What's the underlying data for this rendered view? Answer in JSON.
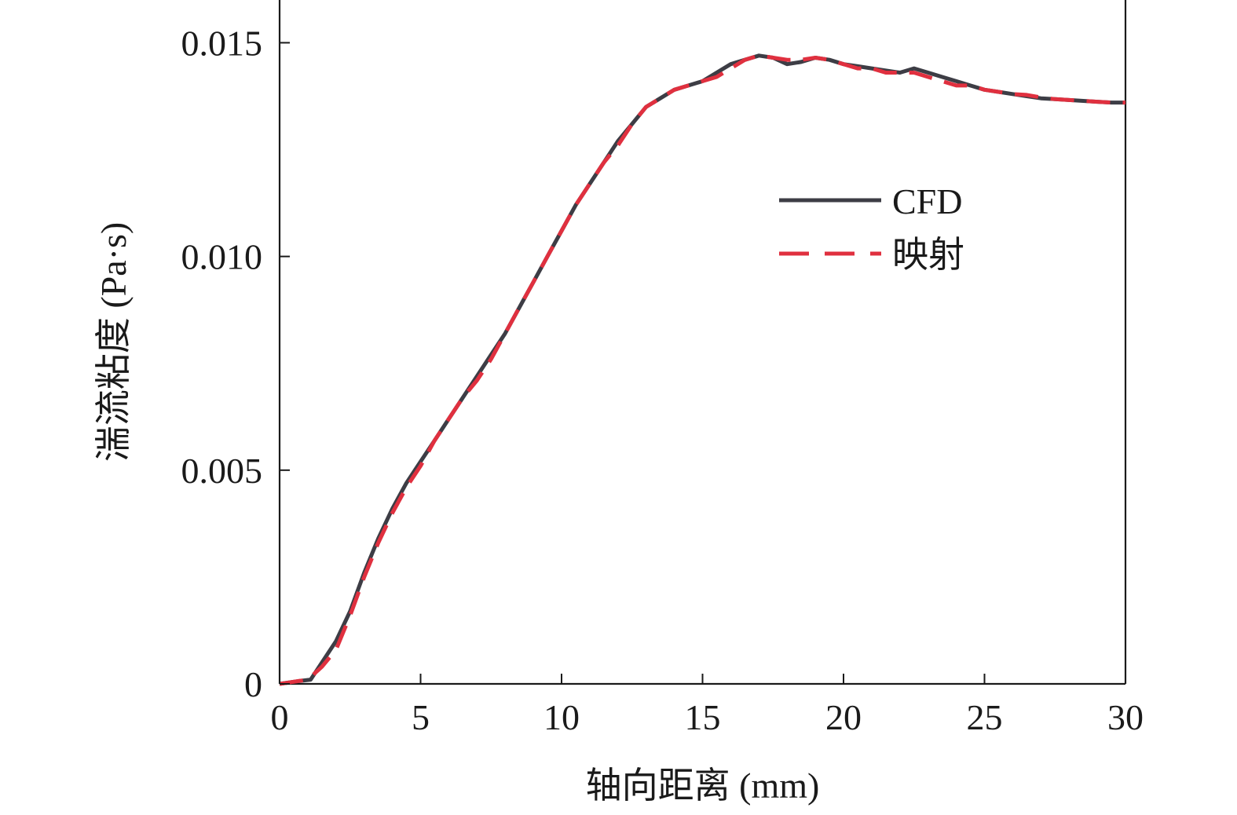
{
  "chart_data": {
    "type": "line",
    "title": "",
    "xlabel": "轴向距离 (mm)",
    "ylabel": "湍流粘度 (Pa·s)",
    "xlim": [
      0,
      30
    ],
    "ylim": [
      0,
      0.016
    ],
    "xticks": [
      0,
      5,
      10,
      15,
      20,
      25,
      30
    ],
    "xtick_labels": [
      "0",
      "5",
      "10",
      "15",
      "20",
      "25",
      "30"
    ],
    "yticks": [
      0,
      0.005,
      0.01,
      0.015
    ],
    "ytick_labels": [
      "0",
      "0.005",
      "0.010",
      "0.015"
    ],
    "grid": false,
    "legend_position": "upper-right",
    "series": [
      {
        "name": "CFD",
        "style": "solid",
        "color": "#3d3d45",
        "x": [
          0,
          0.5,
          1.1,
          1.5,
          2.0,
          2.5,
          3.0,
          3.5,
          4.0,
          4.5,
          5.0,
          5.5,
          6.0,
          6.5,
          7.0,
          7.5,
          8.0,
          8.5,
          9.0,
          9.5,
          10.0,
          10.5,
          11.0,
          11.5,
          12.0,
          12.5,
          13.0,
          13.5,
          14.0,
          14.5,
          15.0,
          15.5,
          16.0,
          16.5,
          17.0,
          17.5,
          18.0,
          18.5,
          19.0,
          19.5,
          20.0,
          20.5,
          21.0,
          21.5,
          22.0,
          22.5,
          23.0,
          23.5,
          24.0,
          24.5,
          25.0,
          25.5,
          26.0,
          26.5,
          27.0,
          27.5,
          28.0,
          28.5,
          29.0,
          29.5,
          30.0
        ],
        "y": [
          0,
          5e-05,
          0.0001,
          0.0005,
          0.001,
          0.0017,
          0.0026,
          0.0034,
          0.0041,
          0.0047,
          0.0052,
          0.0057,
          0.0062,
          0.0067,
          0.0072,
          0.0077,
          0.0082,
          0.0088,
          0.0094,
          0.01,
          0.0106,
          0.0112,
          0.0117,
          0.0122,
          0.0127,
          0.0131,
          0.0135,
          0.0137,
          0.0139,
          0.014,
          0.0141,
          0.0143,
          0.0145,
          0.0146,
          0.0147,
          0.01465,
          0.0145,
          0.01455,
          0.01465,
          0.0146,
          0.0145,
          0.01445,
          0.0144,
          0.01435,
          0.0143,
          0.0144,
          0.0143,
          0.0142,
          0.0141,
          0.014,
          0.0139,
          0.01385,
          0.0138,
          0.01375,
          0.0137,
          0.01368,
          0.01366,
          0.01364,
          0.01362,
          0.0136,
          0.0136
        ]
      },
      {
        "name": "映射",
        "style": "dashed",
        "color": "#e0303f",
        "x": [
          0,
          0.5,
          1.0,
          1.5,
          2.0,
          2.5,
          3.0,
          3.5,
          4.0,
          4.5,
          5.0,
          5.5,
          6.0,
          6.5,
          7.0,
          7.5,
          8.0,
          8.5,
          9.0,
          9.5,
          10.0,
          10.5,
          11.0,
          11.5,
          12.0,
          12.5,
          13.0,
          13.5,
          14.0,
          14.5,
          15.0,
          15.5,
          16.0,
          16.5,
          17.0,
          17.5,
          18.0,
          18.5,
          19.0,
          19.5,
          20.0,
          20.5,
          21.0,
          21.5,
          22.0,
          22.5,
          23.0,
          23.5,
          24.0,
          24.5,
          25.0,
          25.5,
          26.0,
          26.5,
          27.0,
          27.5,
          28.0,
          28.5,
          29.0,
          29.5,
          30.0
        ],
        "y": [
          0,
          5e-05,
          0.0001,
          0.0004,
          0.0008,
          0.0016,
          0.0025,
          0.0033,
          0.004,
          0.0046,
          0.0051,
          0.0057,
          0.0062,
          0.0067,
          0.0071,
          0.0076,
          0.0082,
          0.0088,
          0.0094,
          0.01,
          0.0106,
          0.0112,
          0.0117,
          0.0122,
          0.0126,
          0.0131,
          0.0135,
          0.0137,
          0.0139,
          0.014,
          0.0141,
          0.0142,
          0.0144,
          0.0146,
          0.0147,
          0.01465,
          0.0146,
          0.0146,
          0.01465,
          0.0146,
          0.0145,
          0.0144,
          0.0144,
          0.0143,
          0.0143,
          0.0143,
          0.0142,
          0.0141,
          0.014,
          0.014,
          0.0139,
          0.01385,
          0.0138,
          0.01378,
          0.01372,
          0.01368,
          0.01366,
          0.01364,
          0.01362,
          0.0136,
          0.0136
        ]
      }
    ]
  }
}
